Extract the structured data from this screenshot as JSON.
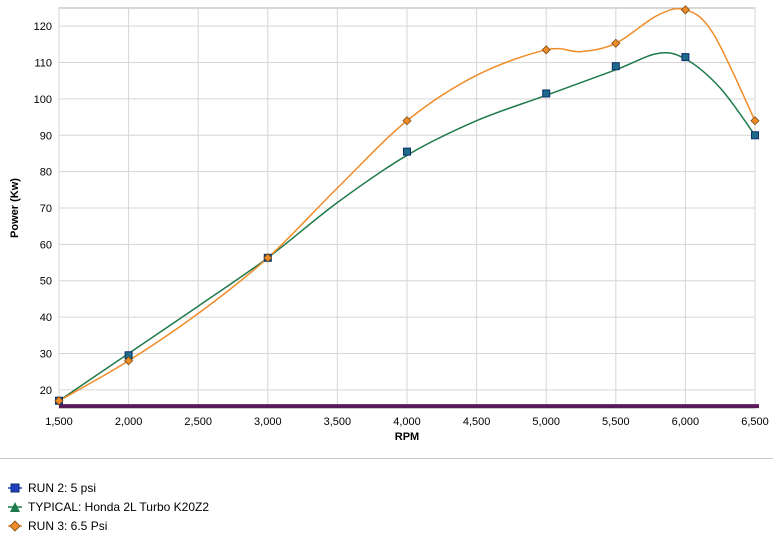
{
  "chart_data": {
    "type": "line",
    "xlabel": "RPM",
    "ylabel": "Power (Kw)",
    "xlim": [
      1500,
      6500
    ],
    "ylim": [
      15,
      125
    ],
    "x_ticks": [
      "1,500",
      "2,000",
      "2,500",
      "3,000",
      "3,500",
      "4,000",
      "4,500",
      "5,000",
      "5,500",
      "6,000",
      "6,500"
    ],
    "y_ticks": [
      "20",
      "30",
      "40",
      "50",
      "60",
      "70",
      "80",
      "90",
      "100",
      "110",
      "120"
    ],
    "grid": true,
    "legend_position": "bottom-left",
    "series": [
      {
        "name": "RUN 2: 5 psi",
        "color": "#1f3fbf",
        "marker": "square",
        "points": [
          [
            1500,
            17
          ],
          [
            2000,
            29.5
          ],
          [
            3000,
            56.3
          ],
          [
            4000,
            85.5
          ],
          [
            5000,
            101.5
          ],
          [
            5500,
            109
          ],
          [
            6000,
            111.5
          ],
          [
            6500,
            90
          ]
        ]
      },
      {
        "name": "TYPICAL: Honda 2L Turbo K20Z2",
        "color": "#1e7a4a",
        "marker": "triangle",
        "points": [
          [
            1500,
            17
          ],
          [
            2000,
            30
          ],
          [
            2500,
            43
          ],
          [
            3000,
            56.3
          ],
          [
            3500,
            71.5
          ],
          [
            4000,
            84.5
          ],
          [
            4500,
            94
          ],
          [
            5000,
            101
          ],
          [
            5500,
            108
          ],
          [
            5800,
            112.5
          ],
          [
            6000,
            111
          ],
          [
            6250,
            103
          ],
          [
            6500,
            90
          ]
        ]
      },
      {
        "name": "RUN 3: 6.5 Psi",
        "color": "#f08c28",
        "marker": "diamond",
        "points": [
          [
            1500,
            17
          ],
          [
            2000,
            28
          ],
          [
            2500,
            41
          ],
          [
            3000,
            56.3
          ],
          [
            3500,
            75.5
          ],
          [
            4000,
            94
          ],
          [
            4500,
            106.5
          ],
          [
            5000,
            113.5
          ],
          [
            5250,
            113
          ],
          [
            5500,
            115.3
          ],
          [
            5800,
            123
          ],
          [
            6000,
            124.5
          ],
          [
            6200,
            118
          ],
          [
            6500,
            94
          ]
        ]
      }
    ],
    "baseline": {
      "value": 15.5,
      "color": "#5a1a5a"
    }
  }
}
